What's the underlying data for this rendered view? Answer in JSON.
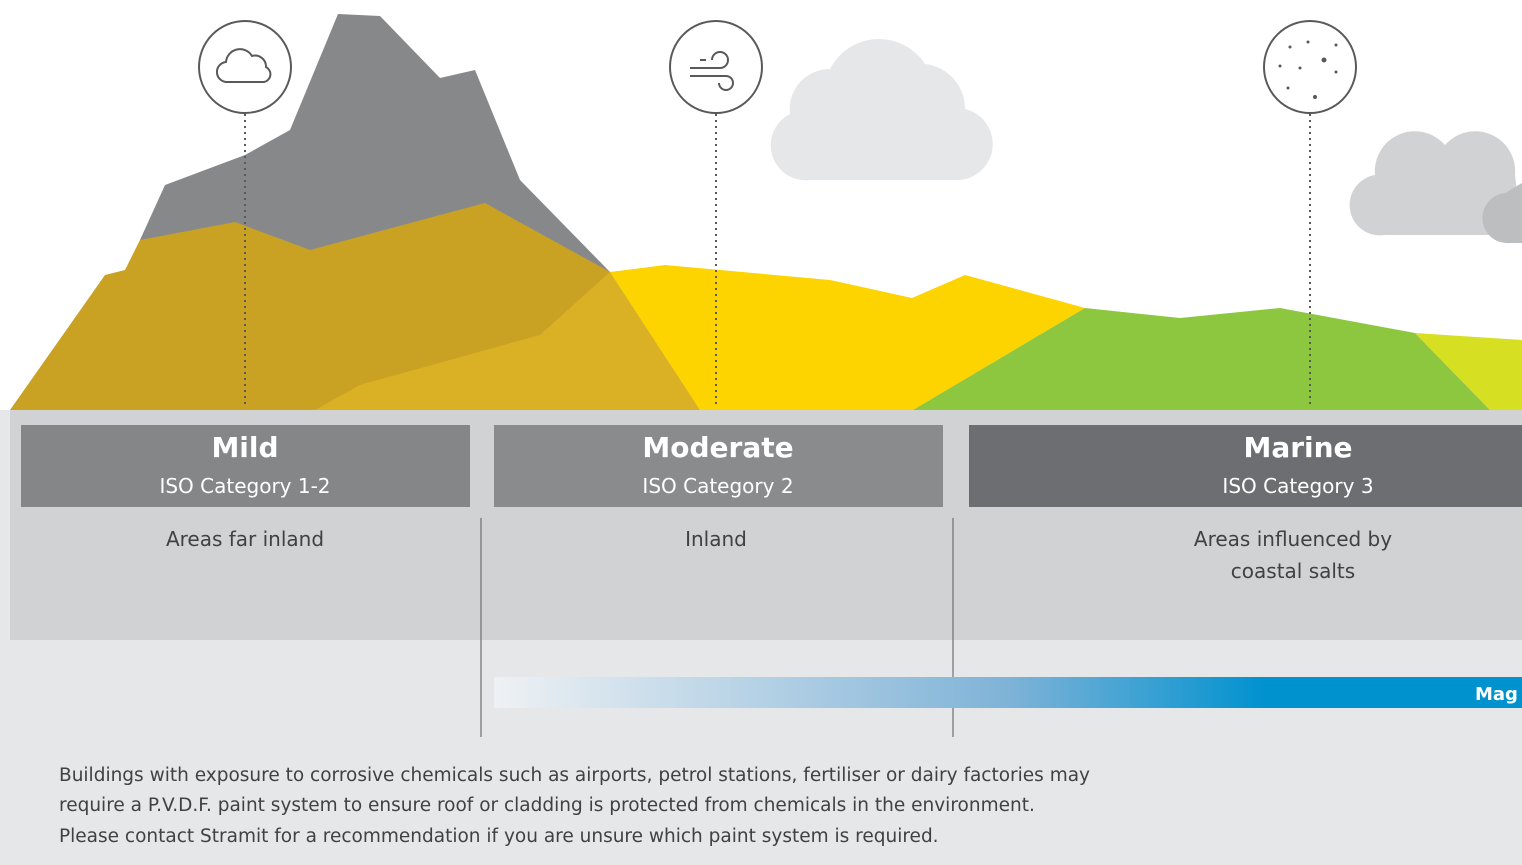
{
  "zones": [
    {
      "title": "Mild",
      "subtitle": "ISO Category 1-2",
      "description": [
        "Areas far inland"
      ]
    },
    {
      "title": "Moderate",
      "subtitle": "ISO Category 2",
      "description": [
        "Inland"
      ]
    },
    {
      "title": "Marine",
      "subtitle": "ISO Category 3",
      "description": [
        "Areas influenced by",
        "coastal salts"
      ]
    }
  ],
  "bar_label": "Mag",
  "note": [
    "Buildings with exposure to corrosive chemicals such as airports, petrol stations, fertiliser or dairy factories may",
    "require a P.V.D.F. paint system to ensure roof or cladding is protected from chemicals in the environment.",
    "Please contact Stramit for a recommendation if you are unsure which paint system is required."
  ]
}
